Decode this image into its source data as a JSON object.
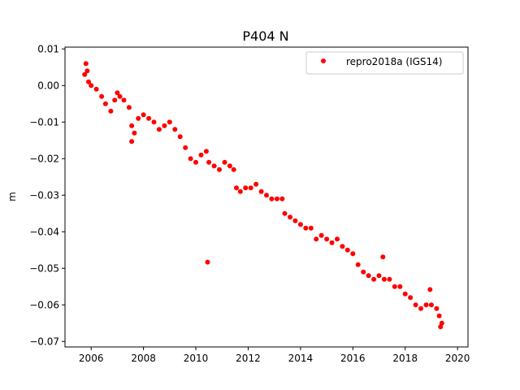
{
  "chart_data": {
    "type": "scatter",
    "title": "P404 N",
    "xlabel": "",
    "ylabel": "m",
    "xlim": [
      2005.0,
      2020.4
    ],
    "ylim": [
      -0.0715,
      0.0105
    ],
    "x_ticks": [
      2006,
      2008,
      2010,
      2012,
      2014,
      2016,
      2018,
      2020
    ],
    "y_ticks": [
      0.01,
      0.0,
      -0.01,
      -0.02,
      -0.03,
      -0.04,
      -0.05,
      -0.06,
      -0.07
    ],
    "x_tick_labels": [
      "2006",
      "2008",
      "2010",
      "2012",
      "2014",
      "2016",
      "2018",
      "2020"
    ],
    "y_tick_labels": [
      "0.01",
      "0.00",
      "−0.01",
      "−0.02",
      "−0.03",
      "−0.04",
      "−0.05",
      "−0.06",
      "−0.07"
    ],
    "grid": false,
    "legend_position": "top-right",
    "series": [
      {
        "name": "repro2018a (IGS14)",
        "color": "#ff0000",
        "marker": "circle",
        "points": [
          [
            2005.75,
            0.003
          ],
          [
            2005.8,
            0.006
          ],
          [
            2005.85,
            0.004
          ],
          [
            2005.9,
            0.001
          ],
          [
            2006.0,
            0.0
          ],
          [
            2006.2,
            -0.001
          ],
          [
            2006.4,
            -0.003
          ],
          [
            2006.55,
            -0.005
          ],
          [
            2006.75,
            -0.007
          ],
          [
            2006.9,
            -0.004
          ],
          [
            2007.0,
            -0.002
          ],
          [
            2007.1,
            -0.003
          ],
          [
            2007.25,
            -0.004
          ],
          [
            2007.45,
            -0.006
          ],
          [
            2007.55,
            -0.011
          ],
          [
            2007.65,
            -0.013
          ],
          [
            2007.8,
            -0.009
          ],
          [
            2008.0,
            -0.008
          ],
          [
            2008.2,
            -0.009
          ],
          [
            2008.4,
            -0.01
          ],
          [
            2008.6,
            -0.012
          ],
          [
            2008.8,
            -0.011
          ],
          [
            2009.0,
            -0.01
          ],
          [
            2009.2,
            -0.012
          ],
          [
            2009.4,
            -0.014
          ],
          [
            2009.6,
            -0.017
          ],
          [
            2009.8,
            -0.02
          ],
          [
            2010.0,
            -0.021
          ],
          [
            2010.2,
            -0.019
          ],
          [
            2010.4,
            -0.018
          ],
          [
            2010.5,
            -0.021
          ],
          [
            2010.7,
            -0.022
          ],
          [
            2010.9,
            -0.023
          ],
          [
            2011.1,
            -0.021
          ],
          [
            2011.3,
            -0.022
          ],
          [
            2011.45,
            -0.023
          ],
          [
            2011.55,
            -0.028
          ],
          [
            2011.7,
            -0.029
          ],
          [
            2011.9,
            -0.028
          ],
          [
            2012.1,
            -0.028
          ],
          [
            2012.3,
            -0.027
          ],
          [
            2012.5,
            -0.029
          ],
          [
            2012.7,
            -0.03
          ],
          [
            2012.9,
            -0.031
          ],
          [
            2013.1,
            -0.031
          ],
          [
            2013.3,
            -0.031
          ],
          [
            2013.4,
            -0.035
          ],
          [
            2013.6,
            -0.036
          ],
          [
            2013.8,
            -0.037
          ],
          [
            2014.0,
            -0.038
          ],
          [
            2014.2,
            -0.039
          ],
          [
            2014.4,
            -0.039
          ],
          [
            2014.6,
            -0.042
          ],
          [
            2014.8,
            -0.041
          ],
          [
            2015.0,
            -0.042
          ],
          [
            2015.2,
            -0.043
          ],
          [
            2015.4,
            -0.042
          ],
          [
            2015.6,
            -0.044
          ],
          [
            2015.8,
            -0.045
          ],
          [
            2016.0,
            -0.046
          ],
          [
            2016.2,
            -0.049
          ],
          [
            2016.4,
            -0.051
          ],
          [
            2016.6,
            -0.052
          ],
          [
            2016.8,
            -0.053
          ],
          [
            2017.0,
            -0.052
          ],
          [
            2017.2,
            -0.053
          ],
          [
            2017.4,
            -0.053
          ],
          [
            2017.6,
            -0.055
          ],
          [
            2017.8,
            -0.055
          ],
          [
            2018.0,
            -0.057
          ],
          [
            2018.2,
            -0.058
          ],
          [
            2018.4,
            -0.06
          ],
          [
            2018.6,
            -0.061
          ],
          [
            2018.8,
            -0.06
          ],
          [
            2019.0,
            -0.06
          ],
          [
            2019.2,
            -0.061
          ],
          [
            2019.3,
            -0.063
          ],
          [
            2019.35,
            -0.066
          ],
          [
            2019.4,
            -0.065
          ],
          [
            2010.45,
            -0.0483
          ],
          [
            2017.15,
            -0.0469
          ],
          [
            2007.55,
            -0.0153
          ],
          [
            2018.95,
            -0.0558
          ]
        ]
      }
    ]
  }
}
